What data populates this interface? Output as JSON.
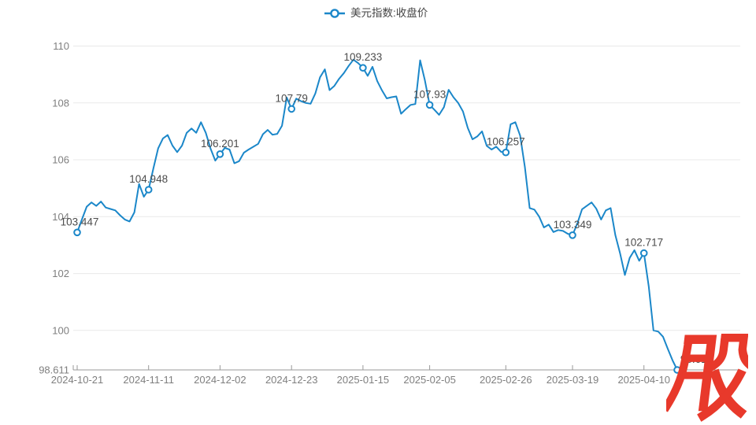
{
  "legend": {
    "label": "美元指数:收盘价"
  },
  "watermark": {
    "text": "股",
    "color": "#e8392b"
  },
  "colors": {
    "line": "#1b87c9",
    "grid": "#e9e9e9",
    "axis_line": "#999999",
    "axis_text": "#7f7f7f",
    "label_text": "#4c4c4c",
    "marker_fill": "#ffffff",
    "background": "#ffffff"
  },
  "chart_data": {
    "type": "line",
    "title": "美元指数:收盘价",
    "legend_position": "top-center",
    "grid": true,
    "ylim": [
      98.611,
      110
    ],
    "y_ticks": [
      110,
      108,
      106,
      104,
      102,
      100
    ],
    "y_axis_min_label": "98.611",
    "x_tick_labels": [
      "2024-10-21",
      "2024-11-11",
      "2024-12-02",
      "2024-12-23",
      "2025-01-15",
      "2025-02-05",
      "2025-02-26",
      "2025-03-19",
      "2025-04-10"
    ],
    "x_tick_indices": [
      0,
      15,
      30,
      45,
      60,
      74,
      90,
      104,
      119
    ],
    "series": [
      {
        "name": "美元指数:收盘价",
        "values": [
          103.447,
          103.9,
          104.35,
          104.5,
          104.38,
          104.53,
          104.32,
          104.27,
          104.22,
          104.05,
          103.9,
          103.83,
          104.15,
          105.15,
          104.7,
          104.948,
          105.7,
          106.4,
          106.75,
          106.87,
          106.5,
          106.27,
          106.5,
          106.95,
          107.1,
          106.95,
          107.32,
          106.95,
          106.4,
          105.97,
          106.201,
          106.42,
          106.36,
          105.88,
          105.95,
          106.25,
          106.36,
          106.46,
          106.56,
          106.9,
          107.05,
          106.88,
          106.91,
          107.2,
          108.19,
          107.79,
          108.15,
          108.06,
          108.0,
          107.97,
          108.33,
          108.9,
          109.18,
          108.45,
          108.6,
          108.85,
          109.05,
          109.3,
          109.52,
          109.4,
          109.233,
          108.95,
          109.27,
          108.77,
          108.44,
          108.16,
          108.2,
          108.23,
          107.62,
          107.78,
          107.93,
          107.96,
          109.5,
          108.8,
          107.93,
          107.76,
          107.58,
          107.85,
          108.46,
          108.2,
          108.0,
          107.7,
          107.13,
          106.72,
          106.82,
          107.0,
          106.49,
          106.36,
          106.46,
          106.28,
          106.257,
          107.25,
          107.32,
          106.85,
          105.75,
          104.3,
          104.25,
          104.0,
          103.62,
          103.72,
          103.46,
          103.53,
          103.5,
          103.4,
          103.349,
          103.75,
          104.26,
          104.38,
          104.5,
          104.28,
          103.9,
          104.22,
          104.3,
          103.35,
          102.7,
          101.95,
          102.55,
          102.82,
          102.45,
          102.717,
          101.55,
          100.0,
          99.96,
          99.78,
          99.35,
          98.95,
          98.611
        ]
      }
    ],
    "annotations": [
      {
        "index": 0,
        "label": "103.447",
        "dx": 3
      },
      {
        "index": 15,
        "label": "104.948",
        "dx": 0
      },
      {
        "index": 30,
        "label": "106.201",
        "dx": 0
      },
      {
        "index": 45,
        "label": "107.79",
        "dx": 0
      },
      {
        "index": 60,
        "label": "109.233",
        "dx": 0
      },
      {
        "index": 74,
        "label": "107.93",
        "dx": 0
      },
      {
        "index": 90,
        "label": "106.257",
        "dx": 0
      },
      {
        "index": 104,
        "label": "103.349",
        "dx": 0
      },
      {
        "index": 119,
        "label": "102.717",
        "dx": 0
      },
      {
        "index": 126,
        "label": "98.611",
        "dx": 24
      }
    ]
  }
}
